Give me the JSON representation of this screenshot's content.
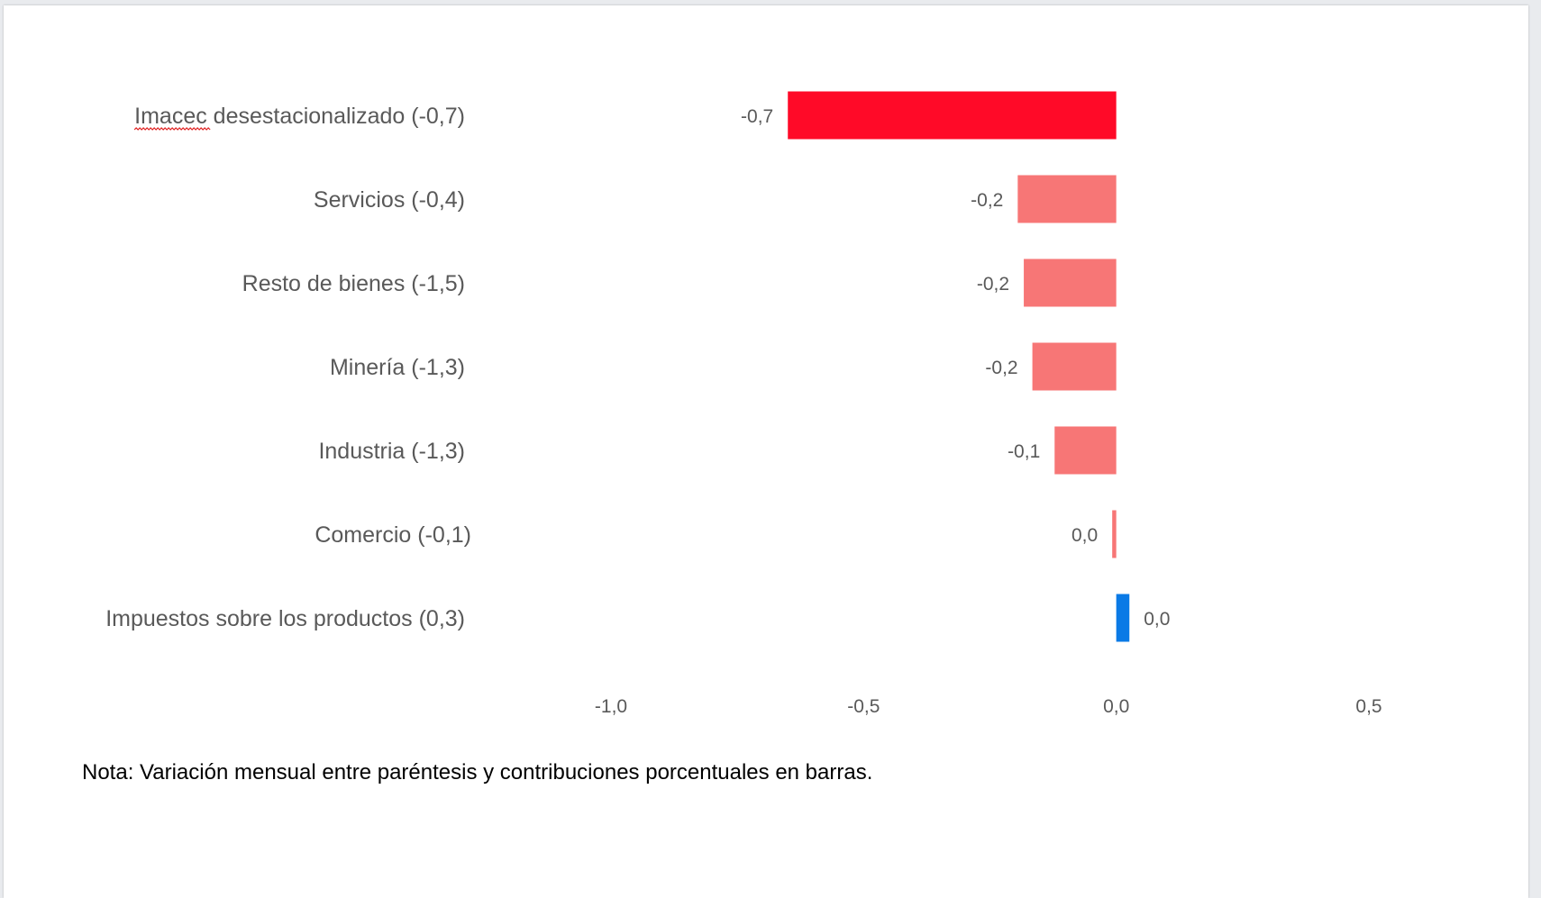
{
  "colors": {
    "total": "#ff0a28",
    "negative": "#f77676",
    "positive": "#0a7ae6",
    "text": "#595959"
  },
  "chart_data": {
    "type": "bar",
    "orientation": "horizontal",
    "categories": [
      "Imacec desestacionalizado (-0,7)",
      "Servicios (-0,4)",
      "Resto de bienes (-1,5)",
      "Minería (-1,3)",
      "Industria (-1,3)",
      "Comercio (-0,1)",
      "Impuestos sobre los productos (0,3)"
    ],
    "values": [
      -0.65,
      -0.195,
      -0.183,
      -0.166,
      -0.122,
      -0.008,
      0.026
    ],
    "data_labels": [
      "-0,7",
      "-0,2",
      "-0,2",
      "-0,2",
      "-0,1",
      "0,0",
      "0,0"
    ],
    "bar_colors": [
      "total",
      "negative",
      "negative",
      "negative",
      "negative",
      "negative",
      "positive"
    ],
    "xlim": [
      -1.0,
      0.5
    ],
    "xticks": [
      -1.0,
      -0.5,
      0.0,
      0.5
    ],
    "xtick_labels": [
      "-1,0",
      "-0,5",
      "0,0",
      "0,5"
    ],
    "grid": false,
    "legend": "none",
    "title": "",
    "xlabel": "",
    "ylabel": ""
  },
  "note": "Nota: Variación mensual entre paréntesis y contribuciones porcentuales en barras."
}
